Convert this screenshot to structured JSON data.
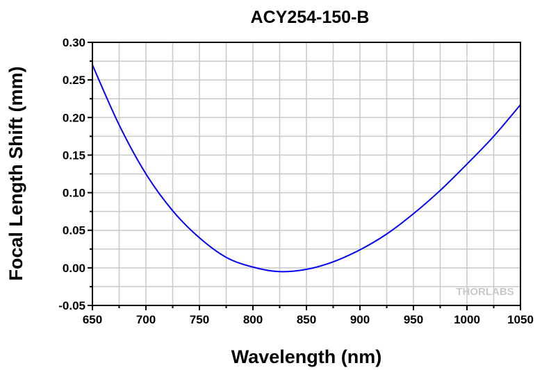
{
  "chart_data": {
    "type": "line",
    "title": "ACY254-150-B",
    "xlabel": "Wavelength (nm)",
    "ylabel": "Focal Length Shift (mm)",
    "xlim": [
      650,
      1050
    ],
    "ylim": [
      -0.05,
      0.3
    ],
    "xticks": [
      "650",
      "700",
      "750",
      "800",
      "850",
      "900",
      "950",
      "1000",
      "1050"
    ],
    "yticks": [
      "-0.05",
      "0.00",
      "0.05",
      "0.10",
      "0.15",
      "0.20",
      "0.25",
      "0.30"
    ],
    "grid": true,
    "watermark": "THORLABS",
    "series": [
      {
        "name": "ACY254-150-B",
        "color": "#0000ff",
        "x": [
          650,
          675,
          700,
          725,
          750,
          775,
          800,
          825,
          850,
          875,
          900,
          925,
          950,
          975,
          1000,
          1025,
          1050
        ],
        "y": [
          0.27,
          0.19,
          0.125,
          0.076,
          0.04,
          0.014,
          0.001,
          -0.005,
          -0.002,
          0.008,
          0.024,
          0.045,
          0.072,
          0.103,
          0.138,
          0.175,
          0.217
        ]
      }
    ]
  }
}
